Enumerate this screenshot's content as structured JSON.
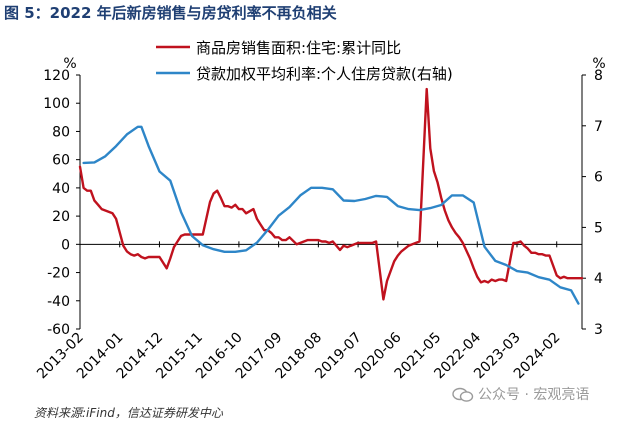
{
  "figure": {
    "title": "图 5：2022 年后新房销售与房贷利率不再负相关",
    "source": "资料来源:iFind，信达证券研发中心",
    "watermark": "公众号 · 宏观亮语"
  },
  "colors": {
    "title": "#1f3f73",
    "sales": "#c0121e",
    "rate": "#2e86c8",
    "axis": "#000000"
  },
  "chart_data": {
    "type": "line",
    "y_left": {
      "unit": "%",
      "ylim": [
        -60,
        120
      ],
      "ticks": [
        -60,
        -40,
        -20,
        0,
        20,
        40,
        60,
        80,
        100,
        120
      ]
    },
    "y_right": {
      "unit": "%",
      "ylim": [
        3,
        8
      ],
      "ticks": [
        3,
        4,
        5,
        6,
        7,
        8
      ]
    },
    "x": {
      "range": [
        "2013-02",
        "2024-09"
      ],
      "tick_labels": [
        "2013-02",
        "2014-01",
        "2014-12",
        "2015-11",
        "2016-10",
        "2017-09",
        "2018-08",
        "2019-07",
        "2020-06",
        "2021-05",
        "2022-04",
        "2023-03",
        "2024-02"
      ]
    },
    "grid": false,
    "legend_position": "top",
    "series": [
      {
        "name": "商品房销售面积:住宅:累计同比",
        "axis": "left",
        "color": "#c0121e",
        "points": [
          [
            "2013-02",
            55
          ],
          [
            "2013-03",
            40
          ],
          [
            "2013-04",
            38
          ],
          [
            "2013-05",
            38
          ],
          [
            "2013-06",
            31
          ],
          [
            "2013-07",
            28
          ],
          [
            "2013-08",
            25
          ],
          [
            "2013-09",
            24
          ],
          [
            "2013-10",
            23
          ],
          [
            "2013-11",
            22
          ],
          [
            "2013-12",
            18
          ],
          [
            "2014-02",
            -1
          ],
          [
            "2014-03",
            -5
          ],
          [
            "2014-04",
            -7
          ],
          [
            "2014-05",
            -8
          ],
          [
            "2014-06",
            -7
          ],
          [
            "2014-07",
            -9
          ],
          [
            "2014-08",
            -10
          ],
          [
            "2014-09",
            -9
          ],
          [
            "2014-10",
            -9
          ],
          [
            "2014-11",
            -9
          ],
          [
            "2014-12",
            -9
          ],
          [
            "2015-02",
            -17
          ],
          [
            "2015-03",
            -10
          ],
          [
            "2015-04",
            -2
          ],
          [
            "2015-05",
            2
          ],
          [
            "2015-06",
            6
          ],
          [
            "2015-07",
            7
          ],
          [
            "2015-08",
            7
          ],
          [
            "2015-09",
            7
          ],
          [
            "2015-10",
            7
          ],
          [
            "2015-11",
            7
          ],
          [
            "2015-12",
            7
          ],
          [
            "2016-02",
            30
          ],
          [
            "2016-03",
            36
          ],
          [
            "2016-04",
            38
          ],
          [
            "2016-05",
            33
          ],
          [
            "2016-06",
            27
          ],
          [
            "2016-07",
            27
          ],
          [
            "2016-08",
            26
          ],
          [
            "2016-09",
            28
          ],
          [
            "2016-10",
            25
          ],
          [
            "2016-11",
            25
          ],
          [
            "2016-12",
            22
          ],
          [
            "2017-02",
            25
          ],
          [
            "2017-03",
            18
          ],
          [
            "2017-04",
            14
          ],
          [
            "2017-05",
            10
          ],
          [
            "2017-06",
            10
          ],
          [
            "2017-07",
            8
          ],
          [
            "2017-08",
            5
          ],
          [
            "2017-09",
            5
          ],
          [
            "2017-10",
            3
          ],
          [
            "2017-11",
            3
          ],
          [
            "2017-12",
            5
          ],
          [
            "2018-02",
            0
          ],
          [
            "2018-03",
            1
          ],
          [
            "2018-04",
            2
          ],
          [
            "2018-05",
            3
          ],
          [
            "2018-06",
            3
          ],
          [
            "2018-07",
            3
          ],
          [
            "2018-08",
            3
          ],
          [
            "2018-09",
            2
          ],
          [
            "2018-10",
            2
          ],
          [
            "2018-11",
            1
          ],
          [
            "2018-12",
            2
          ],
          [
            "2019-02",
            -4
          ],
          [
            "2019-03",
            -1
          ],
          [
            "2019-04",
            -2
          ],
          [
            "2019-05",
            -1
          ],
          [
            "2019-06",
            0
          ],
          [
            "2019-07",
            1
          ],
          [
            "2019-08",
            1
          ],
          [
            "2019-09",
            1
          ],
          [
            "2019-10",
            1
          ],
          [
            "2019-11",
            1
          ],
          [
            "2019-12",
            2
          ],
          [
            "2020-02",
            -39
          ],
          [
            "2020-03",
            -26
          ],
          [
            "2020-04",
            -19
          ],
          [
            "2020-05",
            -12
          ],
          [
            "2020-06",
            -8
          ],
          [
            "2020-07",
            -5
          ],
          [
            "2020-08",
            -3
          ],
          [
            "2020-09",
            -1
          ],
          [
            "2020-10",
            0
          ],
          [
            "2020-11",
            1
          ],
          [
            "2020-12",
            2
          ],
          [
            "2021-02",
            110
          ],
          [
            "2021-03",
            68
          ],
          [
            "2021-04",
            52
          ],
          [
            "2021-05",
            44
          ],
          [
            "2021-06",
            33
          ],
          [
            "2021-07",
            24
          ],
          [
            "2021-08",
            17
          ],
          [
            "2021-09",
            12
          ],
          [
            "2021-10",
            8
          ],
          [
            "2021-11",
            5
          ],
          [
            "2021-12",
            1
          ],
          [
            "2022-02",
            -10
          ],
          [
            "2022-03",
            -17
          ],
          [
            "2022-04",
            -23
          ],
          [
            "2022-05",
            -27
          ],
          [
            "2022-06",
            -26
          ],
          [
            "2022-07",
            -27
          ],
          [
            "2022-08",
            -25
          ],
          [
            "2022-09",
            -26
          ],
          [
            "2022-10",
            -25
          ],
          [
            "2022-11",
            -25
          ],
          [
            "2022-12",
            -26
          ],
          [
            "2023-02",
            1
          ],
          [
            "2023-03",
            1
          ],
          [
            "2023-04",
            2
          ],
          [
            "2023-05",
            -1
          ],
          [
            "2023-06",
            -3
          ],
          [
            "2023-07",
            -6
          ],
          [
            "2023-08",
            -6
          ],
          [
            "2023-09",
            -7
          ],
          [
            "2023-10",
            -7
          ],
          [
            "2023-11",
            -8
          ],
          [
            "2023-12",
            -8
          ],
          [
            "2024-02",
            -22
          ],
          [
            "2024-03",
            -24
          ],
          [
            "2024-04",
            -23
          ],
          [
            "2024-05",
            -24
          ],
          [
            "2024-06",
            -24
          ],
          [
            "2024-07",
            -24
          ],
          [
            "2024-08",
            -24
          ],
          [
            "2024-09",
            -24
          ]
        ]
      },
      {
        "name": "贷款加权平均利率:个人住房贷款(右轴)",
        "axis": "right",
        "color": "#2e86c8",
        "points": [
          [
            "2013-03",
            6.27
          ],
          [
            "2013-06",
            6.28
          ],
          [
            "2013-09",
            6.4
          ],
          [
            "2013-12",
            6.6
          ],
          [
            "2014-03",
            6.83
          ],
          [
            "2014-06",
            6.98
          ],
          [
            "2014-07",
            6.98
          ],
          [
            "2014-09",
            6.6
          ],
          [
            "2014-12",
            6.1
          ],
          [
            "2015-03",
            5.92
          ],
          [
            "2015-06",
            5.3
          ],
          [
            "2015-09",
            4.83
          ],
          [
            "2015-12",
            4.65
          ],
          [
            "2016-03",
            4.57
          ],
          [
            "2016-06",
            4.52
          ],
          [
            "2016-09",
            4.52
          ],
          [
            "2016-12",
            4.55
          ],
          [
            "2017-03",
            4.7
          ],
          [
            "2017-06",
            4.95
          ],
          [
            "2017-09",
            5.23
          ],
          [
            "2017-12",
            5.4
          ],
          [
            "2018-03",
            5.63
          ],
          [
            "2018-06",
            5.78
          ],
          [
            "2018-09",
            5.78
          ],
          [
            "2018-12",
            5.75
          ],
          [
            "2019-03",
            5.53
          ],
          [
            "2019-06",
            5.52
          ],
          [
            "2019-09",
            5.56
          ],
          [
            "2019-12",
            5.62
          ],
          [
            "2020-03",
            5.6
          ],
          [
            "2020-06",
            5.42
          ],
          [
            "2020-09",
            5.36
          ],
          [
            "2020-12",
            5.34
          ],
          [
            "2021-03",
            5.38
          ],
          [
            "2021-06",
            5.44
          ],
          [
            "2021-09",
            5.63
          ],
          [
            "2021-12",
            5.63
          ],
          [
            "2022-03",
            5.49
          ],
          [
            "2022-06",
            4.62
          ],
          [
            "2022-09",
            4.34
          ],
          [
            "2022-12",
            4.26
          ],
          [
            "2023-03",
            4.14
          ],
          [
            "2023-06",
            4.11
          ],
          [
            "2023-09",
            4.02
          ],
          [
            "2023-12",
            3.97
          ],
          [
            "2024-03",
            3.82
          ],
          [
            "2024-06",
            3.76
          ],
          [
            "2024-08",
            3.5
          ]
        ]
      }
    ]
  }
}
